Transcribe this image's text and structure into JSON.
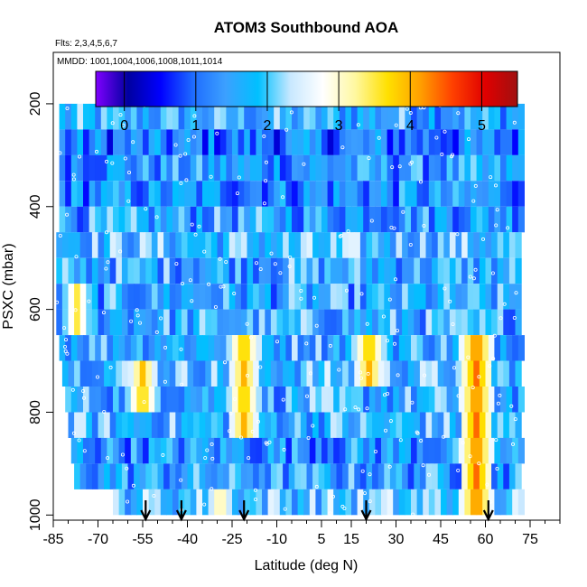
{
  "chart_data": {
    "type": "heatmap",
    "title": "ATOM3 Southbound AOA",
    "subtitle_flights": "Flts: 2,3,4,5,6,7",
    "subtitle_dates": "MMDD: 1001,1004,1006,1008,1011,1014",
    "xlabel": "Latitude (deg N)",
    "ylabel": "PSXC (mbar)",
    "xlim": [
      -85,
      85
    ],
    "ylim": [
      1010,
      100
    ],
    "x_ticks": [
      -85,
      -70,
      -55,
      -40,
      -25,
      -10,
      5,
      15,
      30,
      45,
      60,
      75
    ],
    "x_tick_labels": [
      "-85",
      "-70",
      "-55",
      "-40",
      "-25",
      "-10",
      "5",
      "15",
      "30",
      "45",
      "60",
      "75"
    ],
    "y_ticks": [
      200,
      400,
      600,
      800,
      1000
    ],
    "y_tick_labels": [
      "200",
      "400",
      "600",
      "800",
      "1000"
    ],
    "colorbar": {
      "range": [
        -0.4,
        5.5
      ],
      "ticks": [
        0,
        1,
        2,
        3,
        4,
        5
      ],
      "tick_labels": [
        "0",
        "1",
        "2",
        "3",
        "4",
        "5"
      ]
    },
    "profile_arrows_lat": [
      -54,
      -42,
      -21,
      20,
      61
    ],
    "latitude_coverage": [
      -83,
      72
    ],
    "layers": [
      {
        "p": 225,
        "lat_start": -83,
        "lat_end": 72,
        "mean_aoa": 1.6
      },
      {
        "p": 275,
        "lat_start": -83,
        "lat_end": 72,
        "mean_aoa": 1.1
      },
      {
        "p": 325,
        "lat_start": -83,
        "lat_end": 72,
        "mean_aoa": 1.4
      },
      {
        "p": 375,
        "lat_start": -83,
        "lat_end": 72,
        "mean_aoa": 1.3
      },
      {
        "p": 425,
        "lat_start": -83,
        "lat_end": 72,
        "mean_aoa": 1.5
      },
      {
        "p": 475,
        "lat_start": -84,
        "lat_end": 72,
        "mean_aoa": 1.8
      },
      {
        "p": 525,
        "lat_start": -84,
        "lat_end": 72,
        "mean_aoa": 1.6
      },
      {
        "p": 575,
        "lat_start": -84,
        "lat_end": 72,
        "mean_aoa": 1.5
      },
      {
        "p": 625,
        "lat_start": -84,
        "lat_end": 72,
        "mean_aoa": 1.6
      },
      {
        "p": 675,
        "lat_start": -83,
        "lat_end": 72,
        "mean_aoa": 1.7
      },
      {
        "p": 725,
        "lat_start": -82,
        "lat_end": 72,
        "mean_aoa": 1.8
      },
      {
        "p": 775,
        "lat_start": -81,
        "lat_end": 72,
        "mean_aoa": 1.6
      },
      {
        "p": 825,
        "lat_start": -80,
        "lat_end": 72,
        "mean_aoa": 1.7
      },
      {
        "p": 875,
        "lat_start": -79,
        "lat_end": 72,
        "mean_aoa": 1.4
      },
      {
        "p": 925,
        "lat_start": -78,
        "lat_end": 72,
        "mean_aoa": 1.5
      },
      {
        "p": 975,
        "lat_start": -65,
        "lat_end": 72,
        "mean_aoa": 1.9
      }
    ],
    "high_aoa_features": [
      {
        "lat": -56,
        "p_range": [
          710,
          790
        ],
        "aoa": 3.9
      },
      {
        "lat": -22,
        "p_range": [
          680,
          810
        ],
        "aoa": 4.0
      },
      {
        "lat": 20,
        "p_range": [
          680,
          720
        ],
        "aoa": 4.0
      },
      {
        "lat": 56,
        "p_range": [
          680,
          960
        ],
        "aoa": 4.4
      },
      {
        "lat": -78,
        "p_range": [
          570,
          620
        ],
        "aoa": 3.5
      },
      {
        "lat": -30,
        "p_range": [
          960,
          1000
        ],
        "aoa": 3.4
      }
    ]
  },
  "colors": {
    "palette": [
      "#8000ff",
      "#0000a0",
      "#0000ff",
      "#1e6cff",
      "#3ca0ff",
      "#00c0ff",
      "#c8e8ff",
      "#ffffff",
      "#fff8a0",
      "#ffe000",
      "#ffa000",
      "#ff4000",
      "#e00000",
      "#a01010"
    ]
  }
}
